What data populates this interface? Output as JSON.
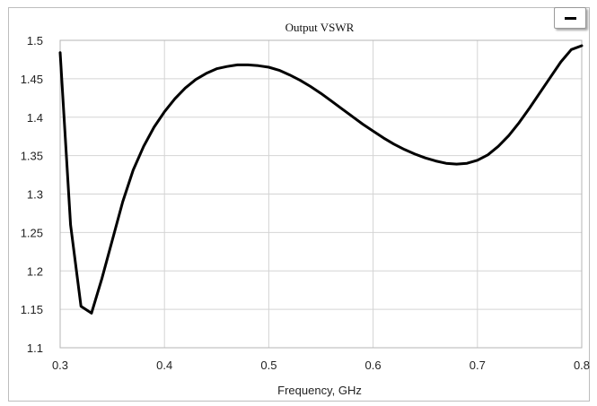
{
  "chart_data": {
    "type": "line",
    "title": "Output VSWR",
    "xlabel": "Frequency, GHz",
    "ylabel": "",
    "xlim": [
      0.3,
      0.8
    ],
    "ylim": [
      1.1,
      1.5
    ],
    "xticks": [
      "0.3",
      "0.4",
      "0.5",
      "0.6",
      "0.7",
      "0.8"
    ],
    "yticks": [
      "1.1",
      "1.15",
      "1.2",
      "1.25",
      "1.3",
      "1.35",
      "1.4",
      "1.45",
      "1.5"
    ],
    "grid": true,
    "legend": "top-right",
    "series": [
      {
        "color": "#000000",
        "x": [
          0.3,
          0.31,
          0.32,
          0.33,
          0.34,
          0.35,
          0.36,
          0.37,
          0.38,
          0.39,
          0.4,
          0.41,
          0.42,
          0.43,
          0.44,
          0.45,
          0.46,
          0.47,
          0.48,
          0.49,
          0.5,
          0.51,
          0.52,
          0.53,
          0.54,
          0.55,
          0.56,
          0.57,
          0.58,
          0.59,
          0.6,
          0.61,
          0.62,
          0.63,
          0.64,
          0.65,
          0.66,
          0.67,
          0.68,
          0.69,
          0.7,
          0.71,
          0.72,
          0.73,
          0.74,
          0.75,
          0.76,
          0.77,
          0.78,
          0.79,
          0.8
        ],
        "values": [
          1.484,
          1.26,
          1.154,
          1.145,
          1.19,
          1.24,
          1.29,
          1.331,
          1.362,
          1.387,
          1.407,
          1.424,
          1.438,
          1.449,
          1.457,
          1.463,
          1.466,
          1.468,
          1.468,
          1.467,
          1.465,
          1.461,
          1.455,
          1.448,
          1.44,
          1.431,
          1.421,
          1.411,
          1.401,
          1.391,
          1.382,
          1.373,
          1.365,
          1.358,
          1.352,
          1.347,
          1.343,
          1.34,
          1.339,
          1.34,
          1.344,
          1.351,
          1.362,
          1.376,
          1.393,
          1.412,
          1.432,
          1.452,
          1.472,
          1.488,
          1.493
        ]
      }
    ]
  }
}
